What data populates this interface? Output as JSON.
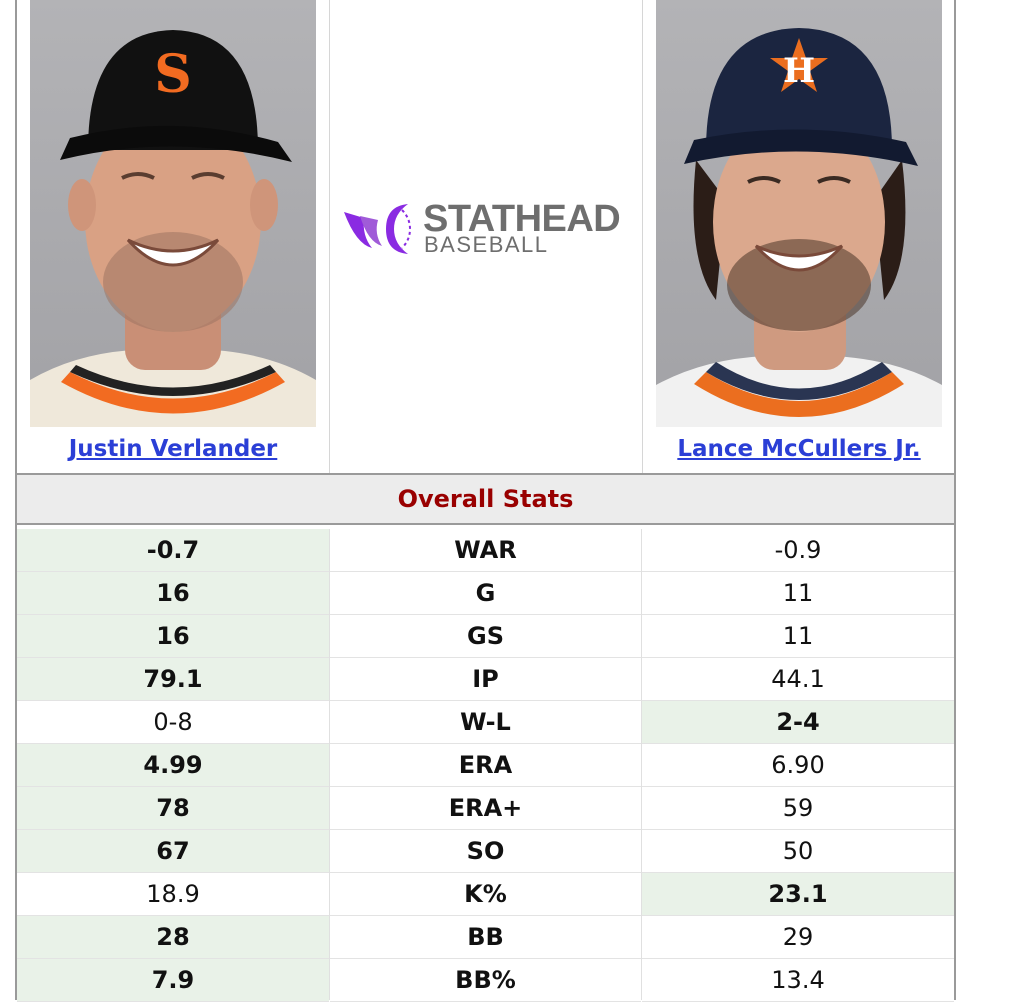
{
  "players": {
    "left": {
      "name": "Justin Verlander",
      "cap_color": "#111111",
      "logo_color": "#f26b21"
    },
    "right": {
      "name": "Lance McCullers Jr.",
      "cap_color": "#1b2540",
      "logo_color": "#eb6e1f"
    }
  },
  "logo": {
    "main": "STATHEAD",
    "sub": "BASEBALL",
    "accent": "#8a2be2"
  },
  "section": {
    "title": "Overall Stats"
  },
  "stats": [
    {
      "label": "WAR",
      "left": "-0.7",
      "right": "-0.9",
      "winner": "left"
    },
    {
      "label": "G",
      "left": "16",
      "right": "11",
      "winner": "left"
    },
    {
      "label": "GS",
      "left": "16",
      "right": "11",
      "winner": "left"
    },
    {
      "label": "IP",
      "left": "79.1",
      "right": "44.1",
      "winner": "left"
    },
    {
      "label": "W-L",
      "left": "0-8",
      "right": "2-4",
      "winner": "right"
    },
    {
      "label": "ERA",
      "left": "4.99",
      "right": "6.90",
      "winner": "left"
    },
    {
      "label": "ERA+",
      "left": "78",
      "right": "59",
      "winner": "left"
    },
    {
      "label": "SO",
      "left": "67",
      "right": "50",
      "winner": "left"
    },
    {
      "label": "K%",
      "left": "18.9",
      "right": "23.1",
      "winner": "right"
    },
    {
      "label": "BB",
      "left": "28",
      "right": "29",
      "winner": "left"
    },
    {
      "label": "BB%",
      "left": "7.9",
      "right": "13.4",
      "winner": "left"
    }
  ],
  "colors": {
    "win_bg": "#e9f2e8",
    "header_text": "#990000",
    "link": "#2b3fd6"
  }
}
